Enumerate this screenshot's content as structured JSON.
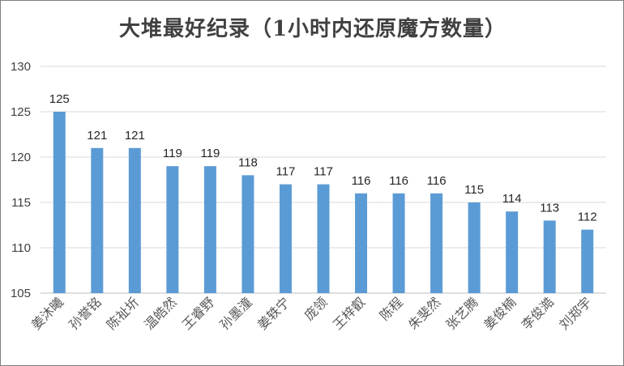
{
  "chart_data": {
    "type": "bar",
    "title": "大堆最好纪录（1小时内还原魔方数量）",
    "categories": [
      "姜沐曦",
      "孙誉铭",
      "陈祉圻",
      "温皓然",
      "王睿野",
      "孙墨潼",
      "姜轶宁",
      "庞领",
      "王梓叡",
      "陈程",
      "朱斐然",
      "张艺腾",
      "姜俊楠",
      "李俊澔",
      "刘郑宇"
    ],
    "values": [
      125,
      121,
      121,
      119,
      119,
      118,
      117,
      117,
      116,
      116,
      116,
      115,
      114,
      113,
      112
    ],
    "ylim": [
      105,
      130
    ],
    "yticks": [
      105,
      110,
      115,
      120,
      125,
      130
    ],
    "xlabel": "",
    "ylabel": "",
    "grid": true,
    "legend": "none",
    "bar_color": "#5b9bd5",
    "grid_color": "#d9d9d9"
  }
}
